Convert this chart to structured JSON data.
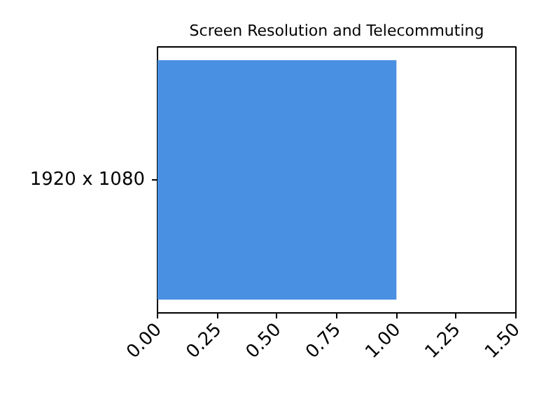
{
  "chart_data": {
    "type": "bar",
    "orientation": "horizontal",
    "title": "Screen Resolution and Telecommuting",
    "categories": [
      "1920 x 1080"
    ],
    "values": [
      1.0
    ],
    "color": "#4a90e2",
    "xlim": [
      0,
      1.5
    ],
    "xticks": [
      {
        "value": 0,
        "label": "0.00"
      },
      {
        "value": 0.25,
        "label": "0.25"
      },
      {
        "value": 0.5,
        "label": "0.50"
      },
      {
        "value": 0.75,
        "label": "0.75"
      },
      {
        "value": 1.0,
        "label": "1.00"
      },
      {
        "value": 1.25,
        "label": "1.25"
      },
      {
        "value": 1.5,
        "label": "1.50"
      }
    ],
    "grid": false
  }
}
